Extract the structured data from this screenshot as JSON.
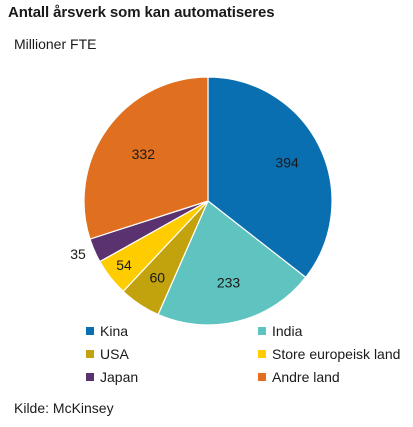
{
  "title": "Antall årsverk som kan automatiseres",
  "unit_label": "Millioner FTE",
  "source": "Kilde: McKinsey",
  "chart_data": {
    "type": "pie",
    "title": "Antall årsverk som kan automatiseres",
    "unit": "Millioner FTE",
    "start": "top (12 o'clock), clockwise",
    "legend_position": "bottom",
    "slices": [
      {
        "name": "Kina",
        "value": 394,
        "color": "#0a6fb0"
      },
      {
        "name": "India",
        "value": 233,
        "color": "#5fc4c0"
      },
      {
        "name": "USA",
        "value": 60,
        "color": "#c2a30e"
      },
      {
        "name": "Store europeisk land",
        "value": 54,
        "color": "#ffcc00"
      },
      {
        "name": "Japan",
        "value": 35,
        "color": "#5b3270"
      },
      {
        "name": "Andre land",
        "value": 332,
        "color": "#e0701f"
      }
    ]
  }
}
